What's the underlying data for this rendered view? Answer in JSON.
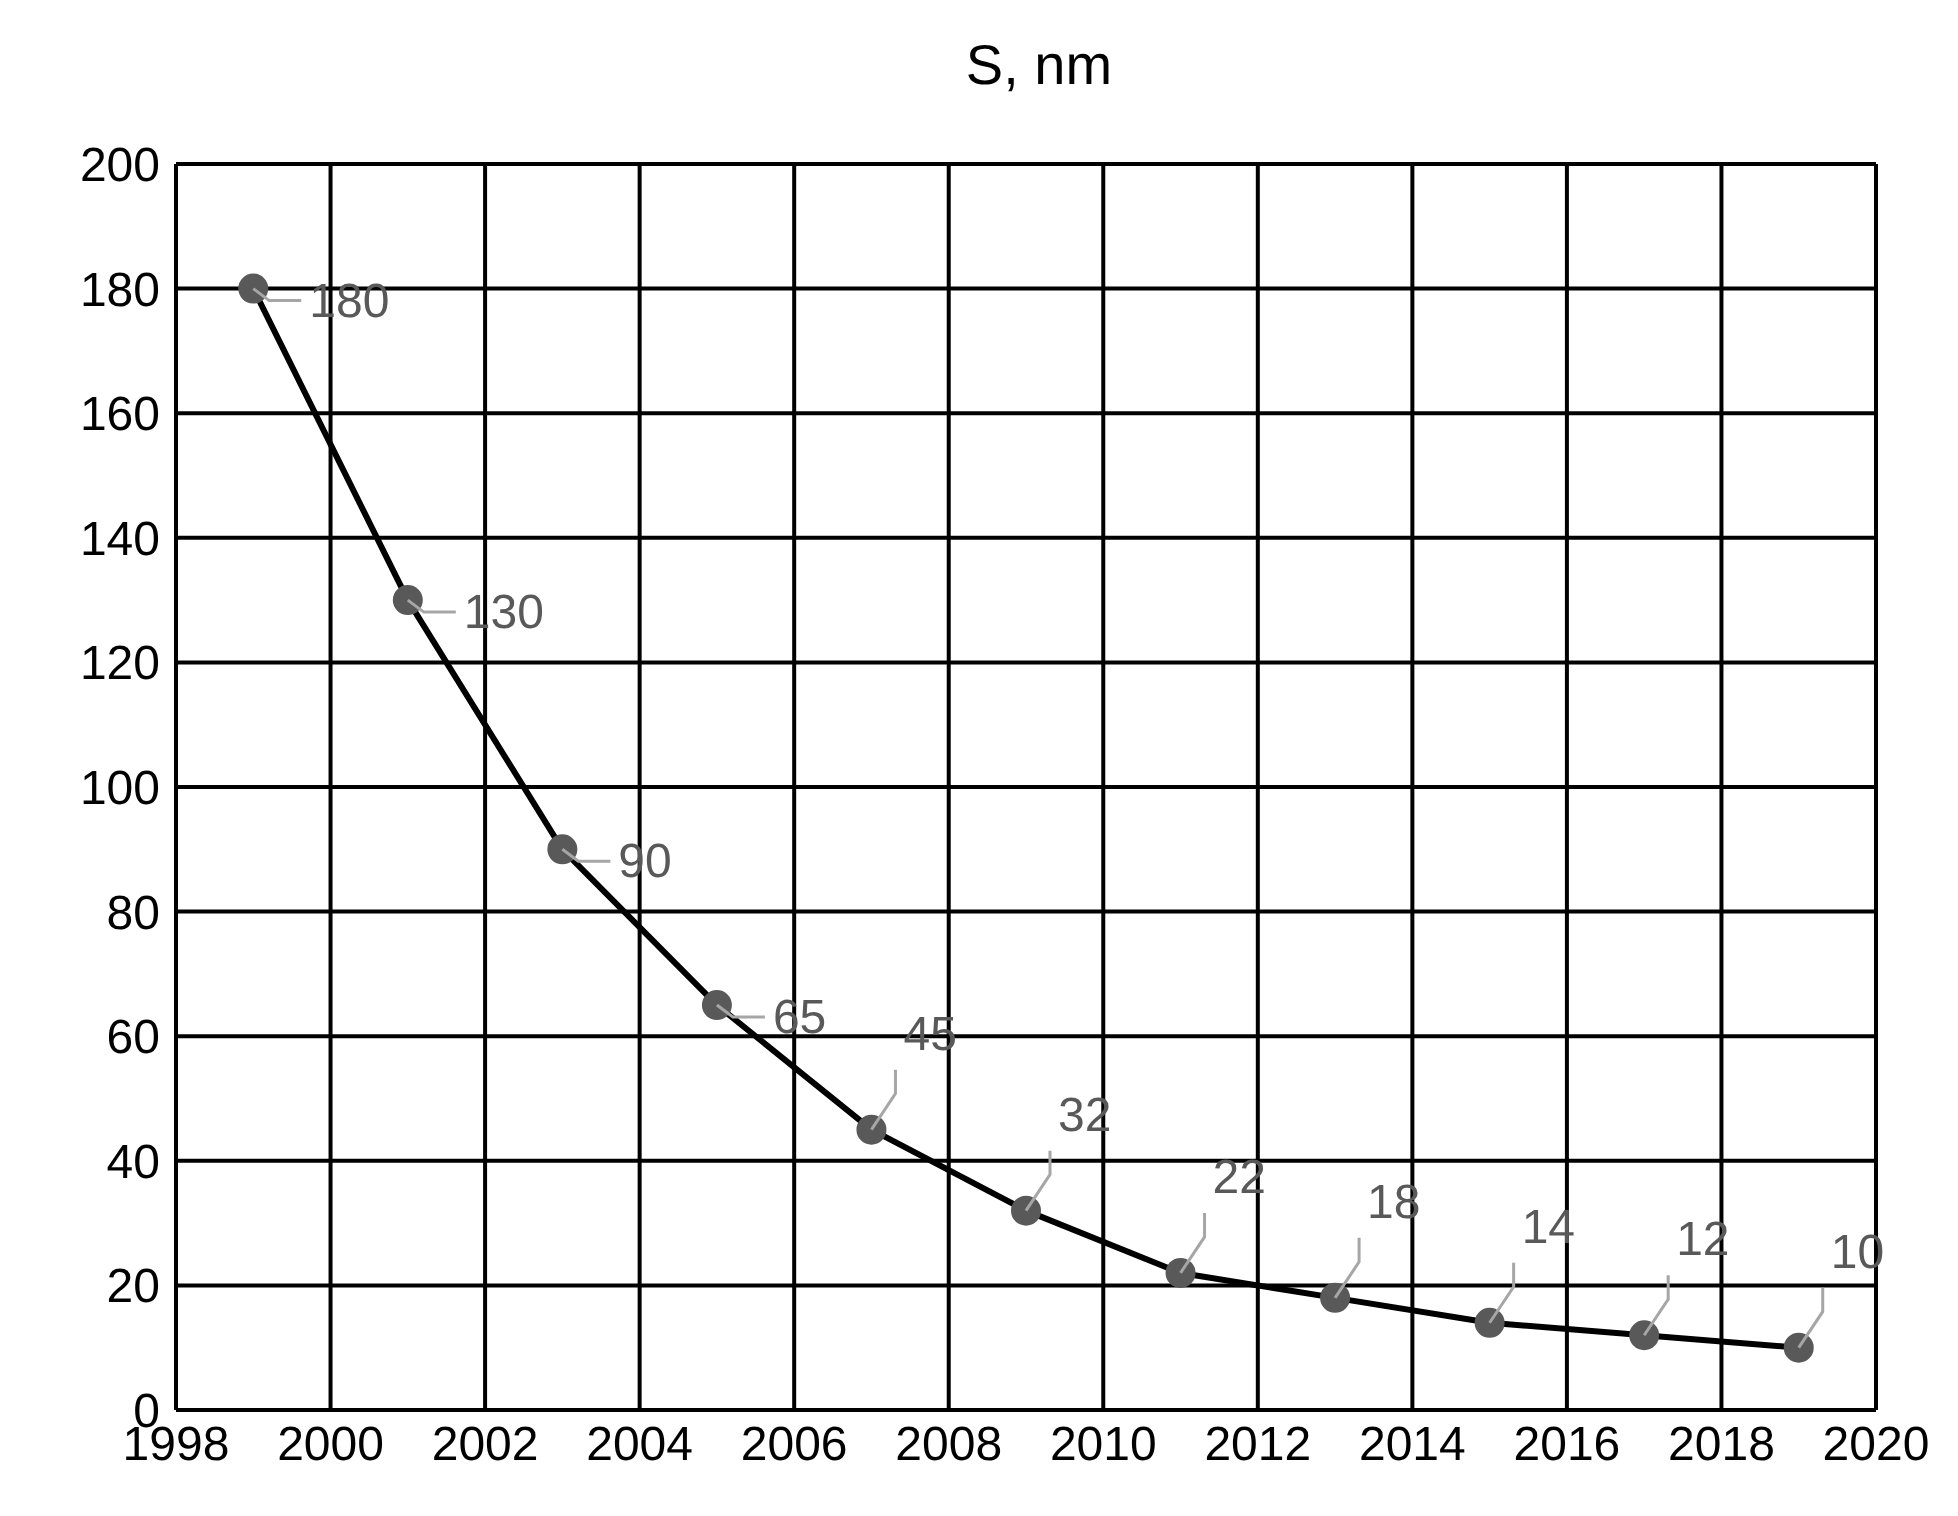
{
  "chart_data": {
    "type": "line",
    "title": "S, nm",
    "x": [
      1999,
      2001,
      2003,
      2005,
      2007,
      2009,
      2011,
      2013,
      2015,
      2017,
      2019
    ],
    "series": [
      {
        "color": "#000000",
        "values": [
          180,
          130,
          90,
          65,
          45,
          32,
          22,
          18,
          14,
          12,
          10
        ]
      }
    ],
    "xlim": [
      1998,
      2020
    ],
    "xticks": [
      1998,
      2000,
      2002,
      2004,
      2006,
      2008,
      2010,
      2012,
      2014,
      2016,
      2018,
      2020
    ],
    "ylim": [
      0,
      200
    ],
    "yticks": [
      0,
      20,
      40,
      60,
      80,
      100,
      120,
      140,
      160,
      180,
      200
    ],
    "grid": true,
    "marker": "circle",
    "line_style": "solid",
    "data_labels": true,
    "legend": false
  }
}
